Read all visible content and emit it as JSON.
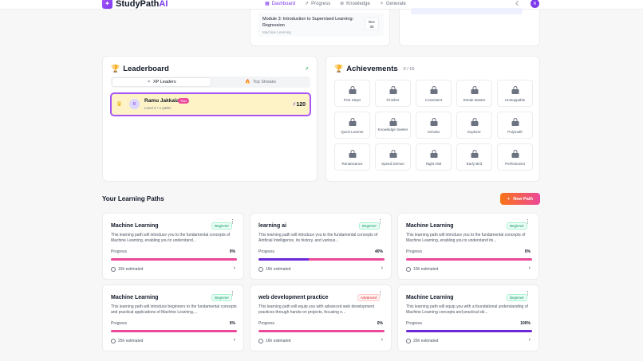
{
  "app": {
    "name_main": "StudyPath",
    "name_accent": "AI",
    "logo_icon": "sparkle-icon"
  },
  "nav": [
    {
      "label": "Dashboard",
      "icon": "▦",
      "active": true
    },
    {
      "label": "Progress",
      "icon": "↗",
      "active": false
    },
    {
      "label": "Knowledge",
      "icon": "⊛",
      "active": false
    },
    {
      "label": "Generate",
      "icon": "✧",
      "active": false
    }
  ],
  "header": {
    "theme_icon": "☾",
    "user_initial": "R"
  },
  "upcoming": {
    "module_title": "Module 3: Introduction to Supervised Learning: Regression",
    "module_path": "Machine Learning",
    "date_month": "Dec",
    "date_day": "30"
  },
  "leaderboard": {
    "title": "Leaderboard",
    "tab_xp": "XP Leaders",
    "tab_streaks": "Top Streaks",
    "entry": {
      "name": "Ramu Jakkala",
      "you": "You",
      "level": "Level 2 • 1 paths",
      "xp": "120",
      "initial": "R"
    }
  },
  "achievements": {
    "title": "Achievements",
    "count": "0 / 15",
    "badges": [
      "First Steps",
      "Finisher",
      "Consistent",
      "Streak Master",
      "Unstoppable",
      "Quick Learner",
      "Knowledge Seeker",
      "Scholar",
      "Explorer",
      "Polymath",
      "Renaissance",
      "Speed Demon",
      "Night Owl",
      "Early Bird",
      "Perfectionist"
    ]
  },
  "paths_section": {
    "title": "Your Learning Paths",
    "new_button": "New Path"
  },
  "paths": [
    {
      "title": "Machine Learning",
      "level": "Beginner",
      "desc": "This learning path will introduce you to the fundamental concepts of Machine Learning, enabling you to understand...",
      "progress_label": "Progress",
      "progress": "0%",
      "fraction": 0,
      "time": "16h estimated"
    },
    {
      "title": "learning ai",
      "level": "Beginner",
      "desc": "This learning path will introduce you to the fundamental concepts of Artificial Intelligence, its history, and various...",
      "progress_label": "Progress",
      "progress": "40%",
      "fraction": 0.4,
      "time": "16h estimated"
    },
    {
      "title": "Machine Learning",
      "level": "Beginner",
      "desc": "This learning path will introduce you to the fundamental concepts of Machine Learning, enabling you to understand its...",
      "progress_label": "Progress",
      "progress": "0%",
      "fraction": 0,
      "time": "10h estimated"
    },
    {
      "title": "Machine Learning",
      "level": "Beginner",
      "desc": "This learning path will introduce beginners to the fundamental concepts and practical applications of Machine Learning,...",
      "progress_label": "Progress",
      "progress": "0%",
      "fraction": 0,
      "time": "25h estimated"
    },
    {
      "title": "web development practice",
      "level": "Advanced",
      "desc": "This learning path will equip you with advanced web development practices through hands-on projects, focusing o...",
      "progress_label": "Progress",
      "progress": "0%",
      "fraction": 0,
      "time": "16h estimated"
    },
    {
      "title": "Machine Learning",
      "level": "Beginner",
      "desc": "This learning path will equip you with a foundational understanding of Machine Learning concepts and practical ski...",
      "progress_label": "Progress",
      "progress": "100%",
      "fraction": 1,
      "time": "25h estimated"
    }
  ]
}
